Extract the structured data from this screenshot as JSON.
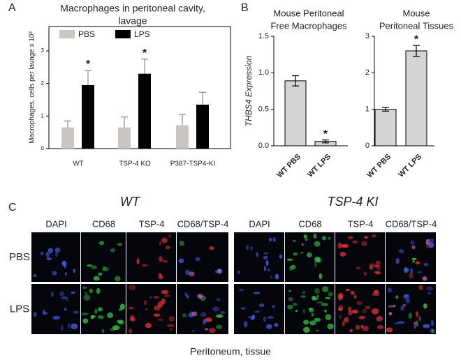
{
  "panel_labels": [
    "A",
    "B",
    "C"
  ],
  "chart_data": [
    {
      "type": "bar",
      "title": [
        "Macrophages in peritoneal cavity,",
        "lavage"
      ],
      "ylabel": "Macrophages, cells per lavage x 10³",
      "categories": [
        "WT",
        "TSP-4 KO",
        "P387-TSP4-KI"
      ],
      "series": [
        {
          "name": "PBS",
          "color": "#c9c5c3",
          "values": [
            0.65,
            0.65,
            0.72
          ],
          "errors": [
            0.2,
            0.32,
            0.33
          ]
        },
        {
          "name": "LPS",
          "color": "#000000",
          "values": [
            1.95,
            2.3,
            1.35
          ],
          "errors": [
            0.45,
            0.45,
            0.38
          ]
        }
      ],
      "ylim": [
        0,
        3.75
      ],
      "yticks": [
        0,
        1,
        2,
        3
      ],
      "legend": "top-left",
      "annotations": [
        {
          "text": "*",
          "category": "WT",
          "series": "LPS"
        },
        {
          "text": "*",
          "category": "TSP-4 KO",
          "series": "LPS"
        }
      ]
    },
    {
      "type": "bar",
      "title": [
        "Mouse Peritoneal",
        "Free Macrophages"
      ],
      "ylabel": "THBS4 Expression",
      "categories": [
        "WT PBS",
        "WT LPS"
      ],
      "values": [
        0.89,
        0.06
      ],
      "errors": [
        0.07,
        0.02
      ],
      "color": "#d4d4d4",
      "ylim": [
        0,
        1.5
      ],
      "yticks": [
        {
          "value": 0,
          "label": "0.0"
        },
        {
          "value": 0.5,
          "label": "0.5"
        },
        {
          "value": 1,
          "label": "1.0"
        },
        {
          "value": 1.5,
          "label": "1.5"
        }
      ],
      "annotations": [
        {
          "text": "*",
          "category": "WT LPS"
        }
      ]
    },
    {
      "type": "bar",
      "title": [
        "Mouse",
        "Peritoneal Tissues"
      ],
      "categories": [
        "WT PBS",
        "WT LPS"
      ],
      "values": [
        1.0,
        2.6
      ],
      "errors": [
        0.05,
        0.15
      ],
      "color": "#d4d4d4",
      "ylim": [
        0,
        3
      ],
      "yticks": [
        0,
        1,
        2,
        3
      ],
      "annotations": [
        {
          "text": "*",
          "category": "WT LPS"
        }
      ]
    }
  ],
  "panel_c": {
    "groups": [
      {
        "title": "WT",
        "columns": [
          "DAPI",
          "CD68",
          "TSP-4",
          "CD68/TSP-4"
        ]
      },
      {
        "title": "TSP-4 KI",
        "columns": [
          "DAPI",
          "CD68",
          "TSP-4",
          "CD68/TSP-4"
        ]
      }
    ],
    "rows": [
      "PBS",
      "LPS"
    ],
    "caption": "Peritoneum, tissue"
  }
}
